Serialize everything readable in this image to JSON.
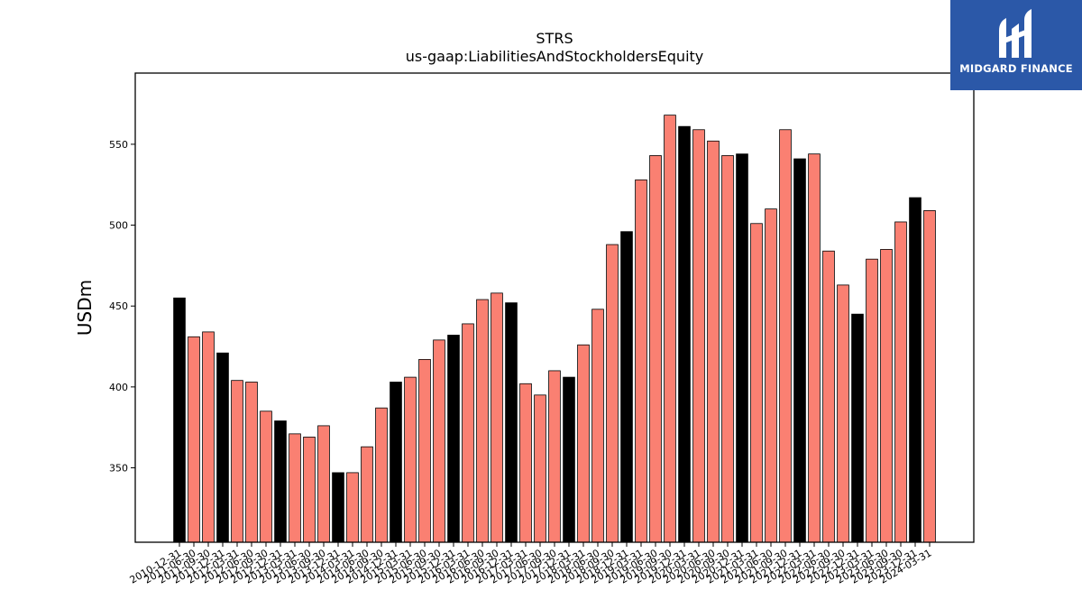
{
  "logo": {
    "text": "MIDGARD FINANCE"
  },
  "colors": {
    "regular_bar": "#fa8072",
    "highlight_bar": "#000000",
    "logo_bg": "#2b58a8"
  },
  "chart_data": {
    "type": "bar",
    "title": "STRS",
    "subtitle": "us-gaap:LiabilitiesAndStockholdersEquity",
    "xlabel": "",
    "ylabel": "USDm",
    "ylim": [
      304,
      594
    ],
    "yticks": [
      350,
      400,
      450,
      500,
      550
    ],
    "grid": false,
    "categories": [
      "2010-12-31",
      "2011-06-30",
      "2011-09-30",
      "2011-12-31",
      "2012-03-31",
      "2012-06-30",
      "2012-09-30",
      "2012-12-31",
      "2013-03-31",
      "2013-06-30",
      "2013-09-30",
      "2013-12-31",
      "2014-03-31",
      "2014-06-30",
      "2014-09-30",
      "2014-12-31",
      "2015-03-31",
      "2015-06-30",
      "2015-09-30",
      "2015-12-31",
      "2016-03-31",
      "2016-06-30",
      "2016-09-30",
      "2016-12-31",
      "2017-03-31",
      "2017-06-30",
      "2017-09-30",
      "2017-12-31",
      "2018-03-31",
      "2018-06-30",
      "2018-09-30",
      "2018-12-31",
      "2019-03-31",
      "2019-06-30",
      "2019-09-30",
      "2019-12-31",
      "2020-03-31",
      "2020-06-30",
      "2020-09-30",
      "2020-12-31",
      "2021-03-31",
      "2021-06-30",
      "2021-09-30",
      "2021-12-31",
      "2022-03-31",
      "2022-06-30",
      "2022-09-30",
      "2022-12-31",
      "2023-03-31",
      "2023-06-30",
      "2023-09-30",
      "2023-12-31",
      "2024-03-31"
    ],
    "values": [
      455,
      431,
      434,
      421,
      404,
      403,
      385,
      379,
      371,
      369,
      376,
      347,
      347,
      363,
      387,
      403,
      406,
      417,
      429,
      432,
      439,
      454,
      458,
      452,
      402,
      395,
      410,
      406,
      426,
      448,
      488,
      496,
      528,
      543,
      568,
      561,
      559,
      552,
      543,
      544,
      501,
      510,
      559,
      541,
      544,
      484,
      463,
      445,
      479,
      485,
      502,
      517,
      509
    ],
    "highlight": [
      true,
      false,
      false,
      true,
      false,
      false,
      false,
      true,
      false,
      false,
      false,
      true,
      false,
      false,
      false,
      true,
      false,
      false,
      false,
      true,
      false,
      false,
      false,
      true,
      false,
      false,
      false,
      true,
      false,
      false,
      false,
      true,
      false,
      false,
      false,
      true,
      false,
      false,
      false,
      true,
      false,
      false,
      false,
      true,
      false,
      false,
      false,
      true,
      false,
      false,
      false,
      true,
      false
    ]
  }
}
